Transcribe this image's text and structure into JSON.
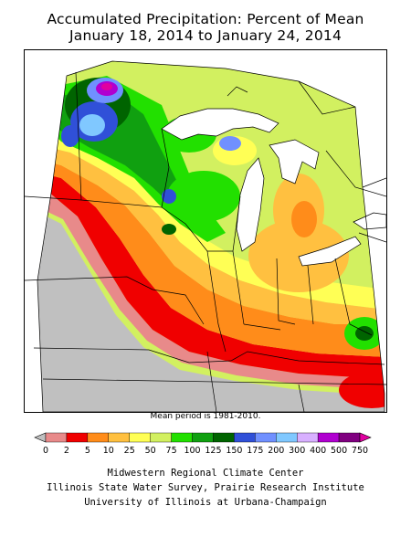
{
  "title_line1": "Accumulated Precipitation: Percent of Mean",
  "title_line2": "January 18, 2014 to January 24, 2014",
  "mean_note": "Mean period is 1981-2010.",
  "legend": {
    "colors": [
      "#c0c0c0",
      "#e88a8a",
      "#f00000",
      "#ff8c1a",
      "#ffc040",
      "#ffff55",
      "#d2f060",
      "#22e000",
      "#10a010",
      "#006400",
      "#3050d8",
      "#7090ff",
      "#80c8ff",
      "#d8b0ff",
      "#b000d0",
      "#800080",
      "#e000a0"
    ],
    "labels": [
      "0",
      "2",
      "5",
      "10",
      "25",
      "50",
      "75",
      "100",
      "125",
      "150",
      "175",
      "200",
      "300",
      "400",
      "500",
      "750"
    ]
  },
  "credits": {
    "line1": "Midwestern Regional Climate Center",
    "line2": "Illinois State Water Survey, Prairie Research Institute",
    "line3": "University of Illinois at Urbana-Champaign"
  }
}
